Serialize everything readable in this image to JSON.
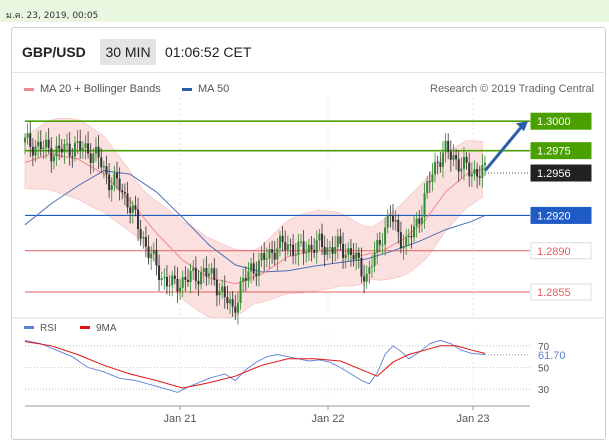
{
  "datestamp": "ม.ค. 23, 2019, 00:05",
  "header": {
    "pair": "GBP/USD",
    "timeframe": "30 MIN",
    "clock": "01:06:52 CET"
  },
  "legend": {
    "ma20": "MA 20 + Bollinger Bands",
    "ma50": "MA 50",
    "credit": "Research © 2019 Trading Central"
  },
  "colors": {
    "green_level": "#4aa000",
    "blue_level": "#1f5bc4",
    "red_level": "#e26060",
    "current": "#222222",
    "ma20": "#f08a8a",
    "ma50": "#4d6fb5",
    "band_fill": "#fbe0e0",
    "rsi": "#5b82d8",
    "rsi_ma": "#e01414",
    "arrow": "#2a5ea8"
  },
  "chart_data": [
    {
      "type": "line",
      "title": "GBP/USD 30 MIN",
      "x_ticks": [
        "Jan 21",
        "Jan 22",
        "Jan 23"
      ],
      "ylim": [
        1.2838,
        1.3018
      ],
      "levels": [
        {
          "value": 1.3,
          "label": "1.3000",
          "kind": "resistance"
        },
        {
          "value": 1.2975,
          "label": "1.2975",
          "kind": "resistance"
        },
        {
          "value": 1.2956,
          "label": "1.2956",
          "kind": "current"
        },
        {
          "value": 1.292,
          "label": "1.2920",
          "kind": "pivot"
        },
        {
          "value": 1.289,
          "label": "1.2890",
          "kind": "support"
        },
        {
          "value": 1.2855,
          "label": "1.2855",
          "kind": "support"
        }
      ],
      "series": [
        {
          "name": "MA 20 + Bollinger Bands"
        },
        {
          "name": "MA 50"
        }
      ],
      "price_path": [
        [
          0,
          1.2982
        ],
        [
          6,
          1.2978
        ],
        [
          12,
          1.2974
        ],
        [
          18,
          1.2978
        ],
        [
          24,
          1.2976
        ],
        [
          28,
          1.2968
        ],
        [
          32,
          1.295
        ],
        [
          36,
          1.2945
        ],
        [
          40,
          1.2928
        ],
        [
          44,
          1.2905
        ],
        [
          48,
          1.2885
        ],
        [
          52,
          1.2868
        ],
        [
          56,
          1.286
        ],
        [
          60,
          1.2865
        ],
        [
          64,
          1.2868
        ],
        [
          68,
          1.2872
        ],
        [
          72,
          1.2866
        ],
        [
          76,
          1.285
        ],
        [
          79,
          1.284
        ],
        [
          82,
          1.2858
        ],
        [
          86,
          1.2875
        ],
        [
          90,
          1.288
        ],
        [
          93,
          1.2888
        ],
        [
          96,
          1.2893
        ],
        [
          100,
          1.2895
        ],
        [
          104,
          1.289
        ],
        [
          108,
          1.2893
        ],
        [
          112,
          1.2895
        ],
        [
          116,
          1.2892
        ],
        [
          120,
          1.2893
        ],
        [
          124,
          1.2888
        ],
        [
          127,
          1.2878
        ],
        [
          130,
          1.2868
        ],
        [
          133,
          1.2885
        ],
        [
          136,
          1.2905
        ],
        [
          139,
          1.292
        ],
        [
          142,
          1.2905
        ],
        [
          145,
          1.2895
        ],
        [
          148,
          1.2908
        ],
        [
          151,
          1.2926
        ],
        [
          154,
          1.295
        ],
        [
          157,
          1.2968
        ],
        [
          160,
          1.2974
        ],
        [
          163,
          1.297
        ],
        [
          166,
          1.2962
        ],
        [
          169,
          1.2958
        ],
        [
          172,
          1.2957
        ],
        [
          175,
          1.2956
        ]
      ],
      "ma20_path": [
        [
          0,
          1.2965
        ],
        [
          10,
          1.2972
        ],
        [
          20,
          1.2968
        ],
        [
          30,
          1.2955
        ],
        [
          40,
          1.2932
        ],
        [
          50,
          1.2905
        ],
        [
          60,
          1.2882
        ],
        [
          70,
          1.2867
        ],
        [
          80,
          1.2862
        ],
        [
          90,
          1.287
        ],
        [
          100,
          1.2885
        ],
        [
          110,
          1.289
        ],
        [
          120,
          1.2891
        ],
        [
          128,
          1.2886
        ],
        [
          136,
          1.289
        ],
        [
          144,
          1.29
        ],
        [
          152,
          1.2915
        ],
        [
          160,
          1.294
        ],
        [
          168,
          1.2955
        ],
        [
          175,
          1.296
        ]
      ],
      "ma50_path": [
        [
          0,
          1.2912
        ],
        [
          10,
          1.293
        ],
        [
          20,
          1.2945
        ],
        [
          30,
          1.2958
        ],
        [
          40,
          1.2955
        ],
        [
          50,
          1.294
        ],
        [
          60,
          1.2918
        ],
        [
          70,
          1.2895
        ],
        [
          80,
          1.2878
        ],
        [
          90,
          1.2872
        ],
        [
          100,
          1.2873
        ],
        [
          110,
          1.2877
        ],
        [
          120,
          1.288
        ],
        [
          130,
          1.2883
        ],
        [
          140,
          1.289
        ],
        [
          150,
          1.2898
        ],
        [
          160,
          1.2908
        ],
        [
          170,
          1.2915
        ],
        [
          175,
          1.292
        ]
      ]
    },
    {
      "type": "line",
      "title": "RSI",
      "ylim": [
        20,
        80
      ],
      "y_ticks": [
        70,
        50,
        30
      ],
      "current_value": 61.7,
      "current_label": "61.70",
      "series": [
        {
          "name": "RSI"
        },
        {
          "name": "9MA"
        }
      ],
      "rsi_path": [
        [
          0,
          75
        ],
        [
          6,
          72
        ],
        [
          12,
          66
        ],
        [
          18,
          60
        ],
        [
          24,
          50
        ],
        [
          30,
          46
        ],
        [
          36,
          40
        ],
        [
          42,
          38
        ],
        [
          48,
          34
        ],
        [
          54,
          30
        ],
        [
          58,
          27
        ],
        [
          62,
          32
        ],
        [
          66,
          36
        ],
        [
          70,
          40
        ],
        [
          76,
          44
        ],
        [
          80,
          38
        ],
        [
          84,
          48
        ],
        [
          88,
          55
        ],
        [
          92,
          60
        ],
        [
          96,
          62
        ],
        [
          100,
          60
        ],
        [
          104,
          58
        ],
        [
          108,
          56
        ],
        [
          112,
          57
        ],
        [
          116,
          55
        ],
        [
          120,
          50
        ],
        [
          124,
          44
        ],
        [
          128,
          38
        ],
        [
          131,
          35
        ],
        [
          134,
          45
        ],
        [
          137,
          62
        ],
        [
          140,
          70
        ],
        [
          143,
          65
        ],
        [
          146,
          58
        ],
        [
          150,
          64
        ],
        [
          154,
          72
        ],
        [
          158,
          75
        ],
        [
          162,
          72
        ],
        [
          166,
          66
        ],
        [
          170,
          63
        ],
        [
          175,
          62
        ]
      ],
      "ma_path": [
        [
          0,
          74
        ],
        [
          10,
          70
        ],
        [
          20,
          62
        ],
        [
          30,
          52
        ],
        [
          40,
          44
        ],
        [
          50,
          38
        ],
        [
          60,
          31
        ],
        [
          70,
          36
        ],
        [
          80,
          42
        ],
        [
          90,
          52
        ],
        [
          100,
          58
        ],
        [
          110,
          58
        ],
        [
          120,
          56
        ],
        [
          128,
          48
        ],
        [
          134,
          42
        ],
        [
          140,
          55
        ],
        [
          146,
          62
        ],
        [
          152,
          66
        ],
        [
          158,
          70
        ],
        [
          164,
          70
        ],
        [
          170,
          66
        ],
        [
          175,
          63
        ]
      ]
    }
  ]
}
